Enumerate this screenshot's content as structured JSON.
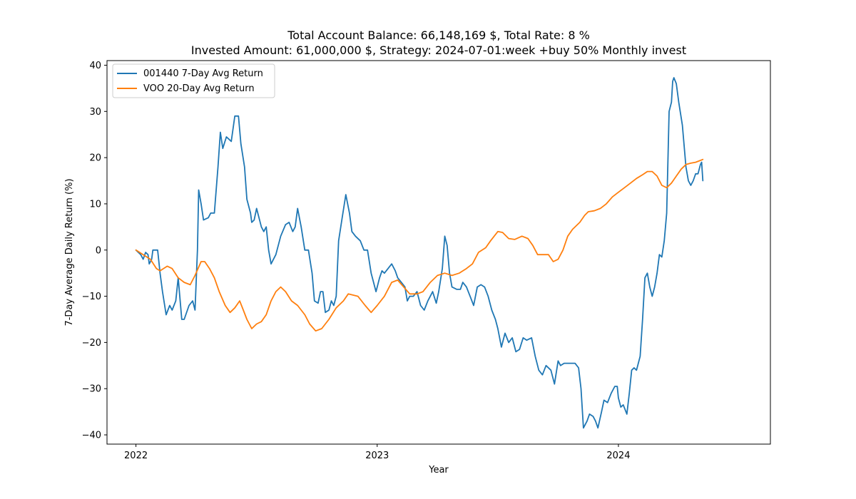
{
  "chart_data": {
    "type": "line",
    "title_line1": "Total Account Balance: 66,148,169 $, Total Rate: 8 %",
    "title_line2": "Invested Amount: 61,000,000 $, Strategy: 2024-07-01:week +buy 50% Monthly invest",
    "xlabel": "Year",
    "ylabel": "7-Day Average Daily Return (%)",
    "xlim": [
      2021.88,
      2024.63
    ],
    "ylim": [
      -42,
      41
    ],
    "yticks": [
      -40,
      -30,
      -20,
      -10,
      0,
      10,
      20,
      30,
      40
    ],
    "xticks": [
      {
        "value": 2022.0,
        "label": "2022"
      },
      {
        "value": 2023.0,
        "label": "2023"
      },
      {
        "value": 2024.0,
        "label": "2024"
      }
    ],
    "grid": false,
    "legend_position": "upper-left",
    "series": [
      {
        "name": "001440 7-Day Avg Return",
        "color": "#1f77b4",
        "points": [
          [
            2022.0,
            0
          ],
          [
            2022.02,
            -1
          ],
          [
            2022.03,
            -2
          ],
          [
            2022.04,
            -0.5
          ],
          [
            2022.05,
            -1
          ],
          [
            2022.055,
            -3
          ],
          [
            2022.065,
            -2
          ],
          [
            2022.07,
            0
          ],
          [
            2022.09,
            0
          ],
          [
            2022.1,
            -5
          ],
          [
            2022.11,
            -9
          ],
          [
            2022.125,
            -14
          ],
          [
            2022.14,
            -12
          ],
          [
            2022.15,
            -13
          ],
          [
            2022.165,
            -11
          ],
          [
            2022.175,
            -6
          ],
          [
            2022.19,
            -15
          ],
          [
            2022.2,
            -15
          ],
          [
            2022.22,
            -12
          ],
          [
            2022.235,
            -11
          ],
          [
            2022.245,
            -13
          ],
          [
            2022.255,
            0
          ],
          [
            2022.26,
            13
          ],
          [
            2022.27,
            10
          ],
          [
            2022.28,
            6.5
          ],
          [
            2022.3,
            7
          ],
          [
            2022.31,
            8
          ],
          [
            2022.325,
            8
          ],
          [
            2022.34,
            18
          ],
          [
            2022.35,
            25.5
          ],
          [
            2022.36,
            22
          ],
          [
            2022.375,
            24.5
          ],
          [
            2022.385,
            24
          ],
          [
            2022.395,
            23.5
          ],
          [
            2022.41,
            29
          ],
          [
            2022.425,
            29
          ],
          [
            2022.435,
            23
          ],
          [
            2022.45,
            18
          ],
          [
            2022.46,
            11
          ],
          [
            2022.475,
            8
          ],
          [
            2022.48,
            6
          ],
          [
            2022.49,
            6.5
          ],
          [
            2022.5,
            9
          ],
          [
            2022.52,
            5
          ],
          [
            2022.53,
            4
          ],
          [
            2022.54,
            5
          ],
          [
            2022.55,
            0
          ],
          [
            2022.56,
            -3
          ],
          [
            2022.58,
            -1
          ],
          [
            2022.6,
            3
          ],
          [
            2022.62,
            5.5
          ],
          [
            2022.635,
            6
          ],
          [
            2022.65,
            4
          ],
          [
            2022.66,
            5
          ],
          [
            2022.67,
            9
          ],
          [
            2022.685,
            5
          ],
          [
            2022.7,
            0
          ],
          [
            2022.715,
            0
          ],
          [
            2022.73,
            -5
          ],
          [
            2022.74,
            -11
          ],
          [
            2022.755,
            -11.5
          ],
          [
            2022.765,
            -9
          ],
          [
            2022.775,
            -9
          ],
          [
            2022.785,
            -13.5
          ],
          [
            2022.8,
            -13
          ],
          [
            2022.81,
            -11
          ],
          [
            2022.82,
            -12
          ],
          [
            2022.83,
            -10
          ],
          [
            2022.84,
            2
          ],
          [
            2022.855,
            7
          ],
          [
            2022.87,
            12
          ],
          [
            2022.885,
            8
          ],
          [
            2022.895,
            4
          ],
          [
            2022.91,
            3
          ],
          [
            2022.93,
            2
          ],
          [
            2022.945,
            0
          ],
          [
            2022.96,
            0
          ],
          [
            2022.975,
            -5
          ],
          [
            2022.985,
            -7
          ],
          [
            2022.995,
            -9
          ],
          [
            2023.0,
            -8
          ],
          [
            2023.01,
            -6
          ],
          [
            2023.02,
            -4.5
          ],
          [
            2023.03,
            -5
          ],
          [
            2023.045,
            -4
          ],
          [
            2023.06,
            -3
          ],
          [
            2023.075,
            -4.5
          ],
          [
            2023.085,
            -6
          ],
          [
            2023.1,
            -7
          ],
          [
            2023.115,
            -8
          ],
          [
            2023.125,
            -11
          ],
          [
            2023.135,
            -10
          ],
          [
            2023.15,
            -10
          ],
          [
            2023.165,
            -9
          ],
          [
            2023.18,
            -12
          ],
          [
            2023.195,
            -13
          ],
          [
            2023.21,
            -11
          ],
          [
            2023.22,
            -10
          ],
          [
            2023.23,
            -9
          ],
          [
            2023.245,
            -11.5
          ],
          [
            2023.255,
            -9
          ],
          [
            2023.27,
            -4
          ],
          [
            2023.28,
            3
          ],
          [
            2023.29,
            1
          ],
          [
            2023.3,
            -5
          ],
          [
            2023.31,
            -8
          ],
          [
            2023.33,
            -8.5
          ],
          [
            2023.345,
            -8.5
          ],
          [
            2023.355,
            -7
          ],
          [
            2023.37,
            -8
          ],
          [
            2023.385,
            -10
          ],
          [
            2023.4,
            -12
          ],
          [
            2023.415,
            -8
          ],
          [
            2023.43,
            -7.5
          ],
          [
            2023.445,
            -8
          ],
          [
            2023.46,
            -10
          ],
          [
            2023.475,
            -13
          ],
          [
            2023.49,
            -15
          ],
          [
            2023.5,
            -17
          ],
          [
            2023.515,
            -21
          ],
          [
            2023.53,
            -18
          ],
          [
            2023.545,
            -20
          ],
          [
            2023.56,
            -19
          ],
          [
            2023.575,
            -22
          ],
          [
            2023.59,
            -21.5
          ],
          [
            2023.605,
            -19
          ],
          [
            2023.62,
            -19.5
          ],
          [
            2023.64,
            -19
          ],
          [
            2023.655,
            -23
          ],
          [
            2023.67,
            -26
          ],
          [
            2023.685,
            -27
          ],
          [
            2023.7,
            -25
          ],
          [
            2023.72,
            -26
          ],
          [
            2023.735,
            -29
          ],
          [
            2023.75,
            -24
          ],
          [
            2023.76,
            -25
          ],
          [
            2023.775,
            -24.5
          ],
          [
            2023.8,
            -24.5
          ],
          [
            2023.82,
            -24.5
          ],
          [
            2023.835,
            -25.5
          ],
          [
            2023.845,
            -30
          ],
          [
            2023.855,
            -38.5
          ],
          [
            2023.87,
            -37
          ],
          [
            2023.88,
            -35.5
          ],
          [
            2023.895,
            -36
          ],
          [
            2023.905,
            -37
          ],
          [
            2023.915,
            -38.5
          ],
          [
            2023.93,
            -35
          ],
          [
            2023.94,
            -32.5
          ],
          [
            2023.955,
            -33
          ],
          [
            2023.97,
            -31
          ],
          [
            2023.985,
            -29.5
          ],
          [
            2023.995,
            -29.5
          ],
          [
            2024.0,
            -32
          ],
          [
            2024.01,
            -34
          ],
          [
            2024.02,
            -33.5
          ],
          [
            2024.035,
            -35.5
          ],
          [
            2024.045,
            -31
          ],
          [
            2024.055,
            -26
          ],
          [
            2024.065,
            -25.5
          ],
          [
            2024.075,
            -26
          ],
          [
            2024.09,
            -23
          ],
          [
            2024.1,
            -15
          ],
          [
            2024.11,
            -6
          ],
          [
            2024.12,
            -5
          ],
          [
            2024.13,
            -8
          ],
          [
            2024.14,
            -10
          ],
          [
            2024.15,
            -8
          ],
          [
            2024.16,
            -5
          ],
          [
            2024.17,
            -1
          ],
          [
            2024.18,
            -1.5
          ],
          [
            2024.19,
            2
          ],
          [
            2024.2,
            8
          ],
          [
            2024.21,
            30
          ],
          [
            2024.22,
            32
          ],
          [
            2024.225,
            36.5
          ],
          [
            2024.23,
            37.3
          ],
          [
            2024.24,
            36
          ],
          [
            2024.25,
            32
          ],
          [
            2024.265,
            27
          ],
          [
            2024.28,
            18
          ],
          [
            2024.29,
            15
          ],
          [
            2024.3,
            14
          ],
          [
            2024.31,
            15
          ],
          [
            2024.32,
            16.5
          ],
          [
            2024.33,
            16.5
          ],
          [
            2024.34,
            18.5
          ],
          [
            2024.345,
            19
          ],
          [
            2024.35,
            15
          ]
        ]
      },
      {
        "name": "VOO 20-Day Avg Return",
        "color": "#ff7f0e",
        "points": [
          [
            2022.0,
            0
          ],
          [
            2022.03,
            -1
          ],
          [
            2022.06,
            -2
          ],
          [
            2022.085,
            -4
          ],
          [
            2022.1,
            -4.5
          ],
          [
            2022.13,
            -3.5
          ],
          [
            2022.15,
            -4
          ],
          [
            2022.175,
            -6
          ],
          [
            2022.2,
            -7
          ],
          [
            2022.225,
            -7.5
          ],
          [
            2022.245,
            -5.5
          ],
          [
            2022.27,
            -2.5
          ],
          [
            2022.285,
            -2.5
          ],
          [
            2022.305,
            -4
          ],
          [
            2022.325,
            -6
          ],
          [
            2022.345,
            -9
          ],
          [
            2022.37,
            -12
          ],
          [
            2022.39,
            -13.5
          ],
          [
            2022.41,
            -12.5
          ],
          [
            2022.43,
            -11
          ],
          [
            2022.445,
            -13
          ],
          [
            2022.46,
            -15
          ],
          [
            2022.48,
            -17
          ],
          [
            2022.5,
            -16
          ],
          [
            2022.52,
            -15.5
          ],
          [
            2022.54,
            -14
          ],
          [
            2022.56,
            -11
          ],
          [
            2022.58,
            -9
          ],
          [
            2022.6,
            -8
          ],
          [
            2022.62,
            -9
          ],
          [
            2022.645,
            -11
          ],
          [
            2022.67,
            -12
          ],
          [
            2022.7,
            -14
          ],
          [
            2022.72,
            -16
          ],
          [
            2022.745,
            -17.5
          ],
          [
            2022.77,
            -17
          ],
          [
            2022.8,
            -15
          ],
          [
            2022.83,
            -12.5
          ],
          [
            2022.86,
            -11
          ],
          [
            2022.88,
            -9.5
          ],
          [
            2022.92,
            -10
          ],
          [
            2022.95,
            -12
          ],
          [
            2022.975,
            -13.5
          ],
          [
            2023.0,
            -12
          ],
          [
            2023.03,
            -10
          ],
          [
            2023.06,
            -7
          ],
          [
            2023.085,
            -6.5
          ],
          [
            2023.11,
            -8
          ],
          [
            2023.135,
            -9.5
          ],
          [
            2023.165,
            -9.5
          ],
          [
            2023.19,
            -9
          ],
          [
            2023.22,
            -7
          ],
          [
            2023.25,
            -5.5
          ],
          [
            2023.28,
            -5
          ],
          [
            2023.31,
            -5.5
          ],
          [
            2023.34,
            -5
          ],
          [
            2023.37,
            -4
          ],
          [
            2023.395,
            -3
          ],
          [
            2023.42,
            -0.5
          ],
          [
            2023.45,
            0.5
          ],
          [
            2023.47,
            2
          ],
          [
            2023.5,
            4
          ],
          [
            2023.52,
            3.8
          ],
          [
            2023.545,
            2.5
          ],
          [
            2023.57,
            2.3
          ],
          [
            2023.6,
            3
          ],
          [
            2023.625,
            2.5
          ],
          [
            2023.645,
            1
          ],
          [
            2023.665,
            -1
          ],
          [
            2023.69,
            -1
          ],
          [
            2023.71,
            -1
          ],
          [
            2023.73,
            -2.5
          ],
          [
            2023.75,
            -2
          ],
          [
            2023.77,
            0
          ],
          [
            2023.79,
            3
          ],
          [
            2023.81,
            4.5
          ],
          [
            2023.84,
            6
          ],
          [
            2023.86,
            7.5
          ],
          [
            2023.875,
            8.3
          ],
          [
            2023.9,
            8.5
          ],
          [
            2023.925,
            9
          ],
          [
            2023.95,
            10
          ],
          [
            2023.975,
            11.5
          ],
          [
            2024.0,
            12.5
          ],
          [
            2024.025,
            13.5
          ],
          [
            2024.05,
            14.5
          ],
          [
            2024.075,
            15.5
          ],
          [
            2024.1,
            16.3
          ],
          [
            2024.12,
            17
          ],
          [
            2024.14,
            17
          ],
          [
            2024.16,
            16
          ],
          [
            2024.18,
            14
          ],
          [
            2024.2,
            13.5
          ],
          [
            2024.22,
            14.5
          ],
          [
            2024.24,
            16
          ],
          [
            2024.26,
            17.5
          ],
          [
            2024.28,
            18.5
          ],
          [
            2024.3,
            18.8
          ],
          [
            2024.32,
            19
          ],
          [
            2024.35,
            19.6
          ]
        ]
      }
    ]
  }
}
